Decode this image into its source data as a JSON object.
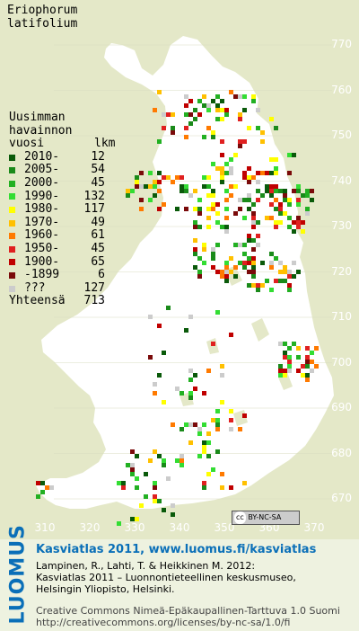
{
  "species": [
    "Eriophorum",
    "latifolium"
  ],
  "legend": {
    "heading": [
      "Uusimman",
      "havainnon",
      "vuosi"
    ],
    "count_header": "lkm",
    "entries": [
      {
        "label": "2010-",
        "count": "12",
        "color": "#0a5a0a"
      },
      {
        "label": "2005-",
        "count": "54",
        "color": "#1a8a1a"
      },
      {
        "label": "2000-",
        "count": "45",
        "color": "#22b022"
      },
      {
        "label": "1990-",
        "count": "132",
        "color": "#33dd33"
      },
      {
        "label": "1980-",
        "count": "117",
        "color": "#ffff00"
      },
      {
        "label": "1970-",
        "count": "49",
        "color": "#ffc000"
      },
      {
        "label": "1960-",
        "count": "61",
        "color": "#ff7a00"
      },
      {
        "label": "1950-",
        "count": "45",
        "color": "#e02020"
      },
      {
        "label": "1900-",
        "count": "65",
        "color": "#c00000"
      },
      {
        "label": "-1899",
        "count": "6",
        "color": "#7a0a0a"
      },
      {
        "label": "???",
        "count": "127",
        "color": "#cccccc"
      }
    ],
    "total_label": "Yhteensä",
    "total_count": "713"
  },
  "y_ticks": [
    "770",
    "760",
    "750",
    "740",
    "730",
    "720",
    "710",
    "700",
    "690",
    "680",
    "670"
  ],
  "x_ticks": [
    "310",
    "320",
    "330",
    "340",
    "350",
    "360",
    "370"
  ],
  "license_badge": "BY-NC-SA",
  "license_cc": "cc",
  "footer": {
    "brand": "LUOMUS",
    "title": "Kasviatlas 2011, www.luomus.fi/kasviatlas",
    "citation": [
      "Lampinen, R., Lahti, T. & Heikkinen M. 2012:",
      "Kasviatlas 2011 – Luonnontieteellinen keskusmuseo,",
      "Helsingin Yliopisto, Helsinki."
    ],
    "license": [
      "Creative Commons Nimeä-Epäkaupallinen-Tarttuva 1.0 Suomi",
      "http://creativecommons.org/licenses/by-nc-sa/1.0/fi"
    ]
  }
}
